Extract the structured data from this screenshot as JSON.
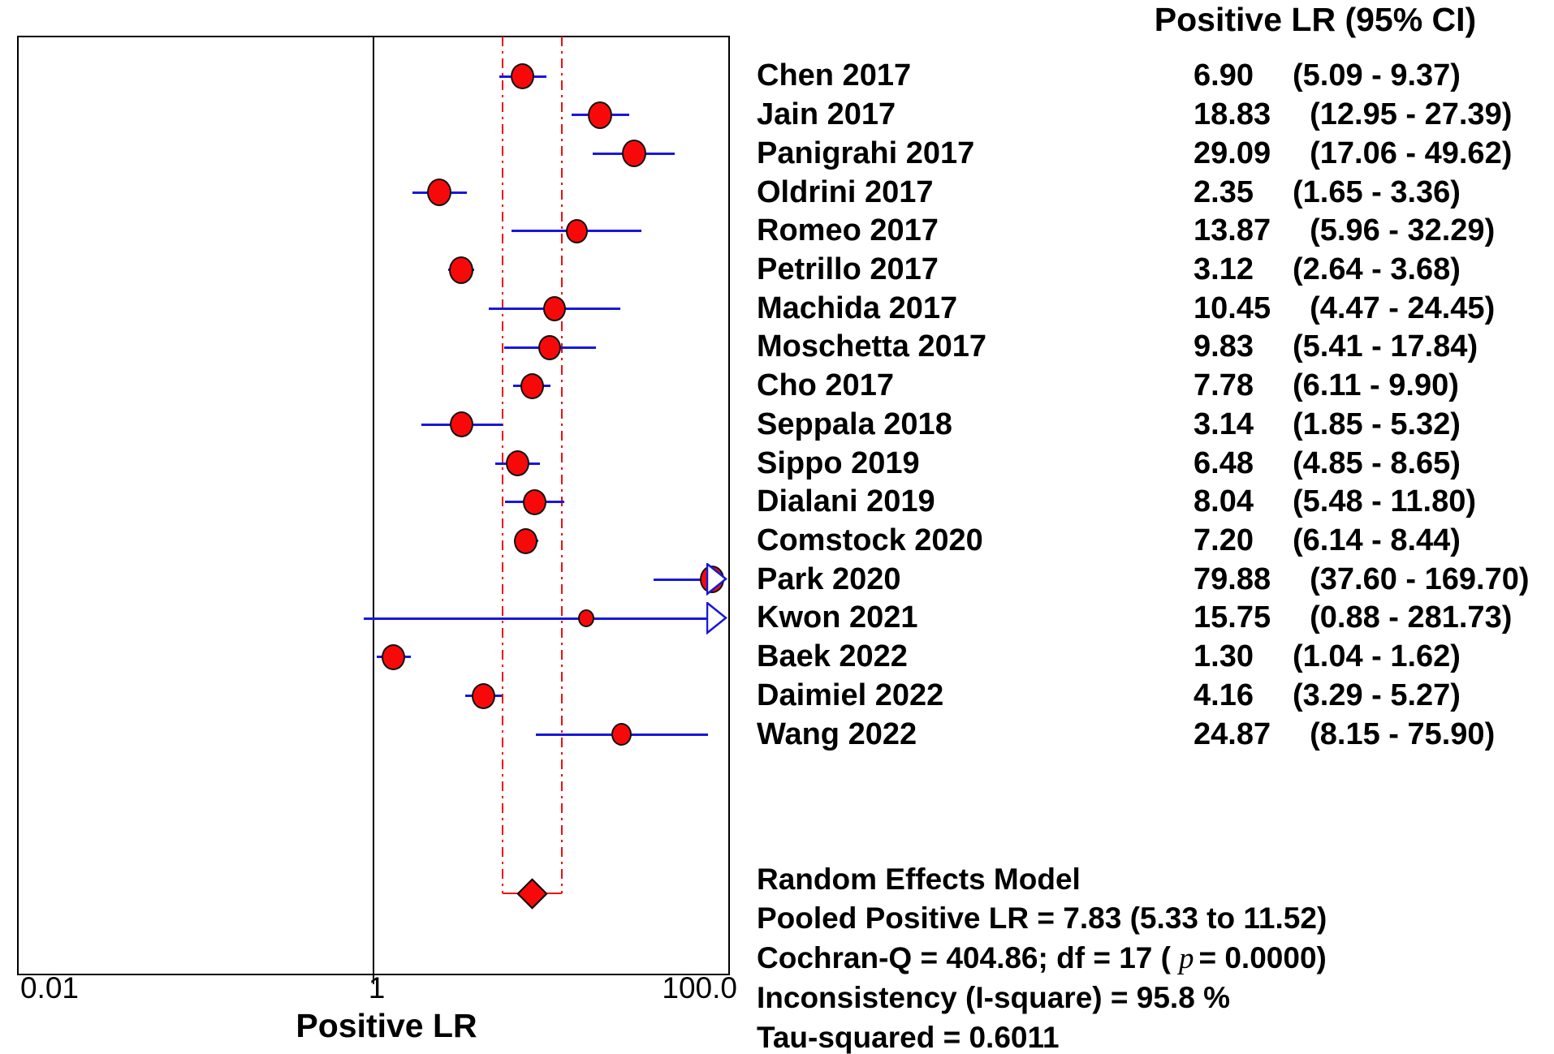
{
  "column_header": "Positive LR (95% CI)",
  "colors": {
    "red": "#f20d0d",
    "blue": "#1717dd",
    "black": "#000000",
    "marker_fill": "#f80909",
    "white": "#ffffff"
  },
  "chart_data": {
    "type": "forest",
    "title": "",
    "xlabel": "Positive LR",
    "x_axis": {
      "scale": "log10",
      "min": 0.01,
      "max": 100,
      "tick_labels": [
        "0.01",
        "1",
        "100.0"
      ],
      "tick_values": [
        0.01,
        1,
        100
      ],
      "reference_line": 1
    },
    "pooled": {
      "estimate": 7.83,
      "lo": 5.33,
      "hi": 11.52
    },
    "studies": [
      {
        "label": "Chen 2017",
        "est": 6.9,
        "lo": 5.09,
        "hi": 9.37,
        "est_text": "6.90",
        "ci_text": "(5.09 - 9.37)",
        "size": 29,
        "arrow": false
      },
      {
        "label": "Jain 2017",
        "est": 18.83,
        "lo": 12.95,
        "hi": 27.39,
        "est_text": "18.83",
        "ci_text": "(12.95 - 27.39)",
        "size": 30,
        "arrow": false
      },
      {
        "label": "Panigrahi 2017",
        "est": 29.09,
        "lo": 17.06,
        "hi": 49.62,
        "est_text": "29.09",
        "ci_text": "(17.06 - 49.62)",
        "size": 30,
        "arrow": false
      },
      {
        "label": "Oldrini 2017",
        "est": 2.35,
        "lo": 1.65,
        "hi": 3.36,
        "est_text": "2.35",
        "ci_text": "(1.65 - 3.36)",
        "size": 30,
        "arrow": false
      },
      {
        "label": "Romeo 2017",
        "est": 13.87,
        "lo": 5.96,
        "hi": 32.29,
        "est_text": "13.87",
        "ci_text": "(5.96 - 32.29)",
        "size": 27,
        "arrow": false
      },
      {
        "label": "Petrillo 2017",
        "est": 3.12,
        "lo": 2.64,
        "hi": 3.68,
        "est_text": "3.12",
        "ci_text": "(2.64 - 3.68)",
        "size": 30,
        "arrow": false
      },
      {
        "label": "Machida 2017",
        "est": 10.45,
        "lo": 4.47,
        "hi": 24.45,
        "est_text": "10.45",
        "ci_text": "(4.47 - 24.45)",
        "size": 28,
        "arrow": false
      },
      {
        "label": "Moschetta 2017",
        "est": 9.83,
        "lo": 5.41,
        "hi": 17.84,
        "est_text": "9.83",
        "ci_text": "(5.41 - 17.84)",
        "size": 28,
        "arrow": false
      },
      {
        "label": "Cho 2017",
        "est": 7.78,
        "lo": 6.11,
        "hi": 9.9,
        "est_text": "7.78",
        "ci_text": "(6.11 - 9.90)",
        "size": 29,
        "arrow": false
      },
      {
        "label": "Seppala 2018",
        "est": 3.14,
        "lo": 1.85,
        "hi": 5.32,
        "est_text": "3.14",
        "ci_text": "(1.85 - 5.32)",
        "size": 29,
        "arrow": false
      },
      {
        "label": "Sippo 2019",
        "est": 6.48,
        "lo": 4.85,
        "hi": 8.65,
        "est_text": "6.48",
        "ci_text": "(4.85 - 8.65)",
        "size": 29,
        "arrow": false
      },
      {
        "label": "Dialani 2019",
        "est": 8.04,
        "lo": 5.48,
        "hi": 11.8,
        "est_text": "8.04",
        "ci_text": "(5.48 - 11.80)",
        "size": 29,
        "arrow": false
      },
      {
        "label": "Comstock 2020",
        "est": 7.2,
        "lo": 6.14,
        "hi": 8.44,
        "est_text": "7.20",
        "ci_text": "(6.14 - 8.44)",
        "size": 29,
        "arrow": false
      },
      {
        "label": "Park 2020",
        "est": 79.88,
        "lo": 37.6,
        "hi": 169.7,
        "est_text": "79.88",
        "ci_text": "(37.60 - 169.70)",
        "size": 30,
        "arrow": true
      },
      {
        "label": "Kwon 2021",
        "est": 15.75,
        "lo": 0.88,
        "hi": 281.73,
        "est_text": "15.75",
        "ci_text": "(0.88 - 281.73)",
        "size": 20,
        "arrow": true
      },
      {
        "label": "Baek 2022",
        "est": 1.3,
        "lo": 1.04,
        "hi": 1.62,
        "est_text": "1.30",
        "ci_text": "(1.04 - 1.62)",
        "size": 29,
        "arrow": false
      },
      {
        "label": "Daimiel 2022",
        "est": 4.16,
        "lo": 3.29,
        "hi": 5.27,
        "est_text": "4.16",
        "ci_text": "(3.29 - 5.27)",
        "size": 29,
        "arrow": false
      },
      {
        "label": "Wang 2022",
        "est": 24.87,
        "lo": 8.15,
        "hi": 75.9,
        "est_text": "24.87",
        "ci_text": "(8.15 - 75.90)",
        "size": 25,
        "arrow": false
      }
    ]
  },
  "summary_lines": [
    {
      "text": "Random Effects Model"
    },
    {
      "text": "Pooled Positive LR = 7.83 (5.33 to 11.52)"
    },
    {
      "pre": "Cochran-Q = 404.86; df =  17 (",
      "italic": "p",
      "post": "= 0.0000)"
    },
    {
      "text": "Inconsistency (I-square) = 95.8 %"
    },
    {
      "text": "Tau-squared = 0.6011"
    }
  ]
}
